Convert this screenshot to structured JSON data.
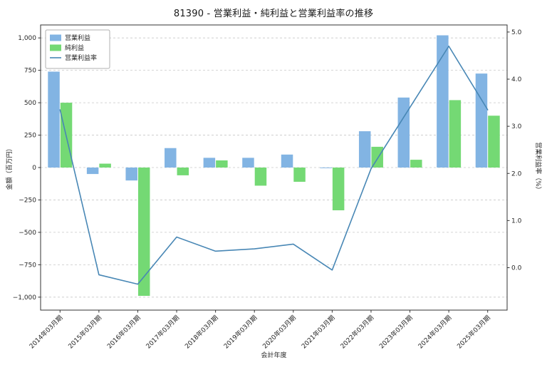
{
  "chart_data": {
    "type": "bar+line",
    "title": "81390 - 営業利益・純利益と営業利益率の推移",
    "xlabel": "会計年度",
    "ylabel_left": "金額（百万円）",
    "ylabel_right": "営業利益率（%）",
    "categories": [
      "2014年03月期",
      "2015年03月期",
      "2016年03月期",
      "2017年03月期",
      "2018年03月期",
      "2019年03月期",
      "2020年03月期",
      "2021年03月期",
      "2022年03月期",
      "2023年03月期",
      "2024年03月期",
      "2025年03月期"
    ],
    "series": [
      {
        "name": "営業利益",
        "kind": "bar",
        "axis": "left",
        "color": "#82b4e3",
        "values": [
          740,
          -50,
          -100,
          150,
          75,
          75,
          100,
          -5,
          280,
          540,
          1020,
          725
        ]
      },
      {
        "name": "純利益",
        "kind": "bar",
        "axis": "left",
        "color": "#74d974",
        "values": [
          500,
          30,
          -990,
          -60,
          55,
          -140,
          -110,
          -330,
          160,
          60,
          520,
          400
        ]
      },
      {
        "name": "営業利益率",
        "kind": "line",
        "axis": "right",
        "color": "#4887b5",
        "values": [
          3.35,
          -0.15,
          -0.35,
          0.65,
          0.35,
          0.4,
          0.5,
          -0.05,
          2.1,
          3.4,
          4.7,
          3.35
        ]
      }
    ],
    "ylim_left": [
      -1100,
      1100
    ],
    "yticks_left": [
      {
        "v": 1000,
        "label": "1,000"
      },
      {
        "v": 750,
        "label": "750"
      },
      {
        "v": 500,
        "label": "500"
      },
      {
        "v": 250,
        "label": "250"
      },
      {
        "v": 0,
        "label": "0"
      },
      {
        "v": -250,
        "label": "−250"
      },
      {
        "v": -500,
        "label": "−500"
      },
      {
        "v": -750,
        "label": "−750"
      },
      {
        "v": -1000,
        "label": "−1,000"
      }
    ],
    "ylim_right": [
      -0.9,
      5.15
    ],
    "yticks_right": [
      {
        "v": 5.0,
        "label": "5.0"
      },
      {
        "v": 4.0,
        "label": "4.0"
      },
      {
        "v": 3.0,
        "label": "3.0"
      },
      {
        "v": 2.0,
        "label": "2.0"
      },
      {
        "v": 1.0,
        "label": "1.0"
      },
      {
        "v": 0.0,
        "label": "0.0"
      }
    ],
    "grid": true,
    "legend_position": "upper-left",
    "colors": {
      "grid": "#c8c8c8",
      "frame": "#333333",
      "text": "#262626",
      "background": "#ffffff",
      "legend_border": "#b0b0b0"
    }
  }
}
